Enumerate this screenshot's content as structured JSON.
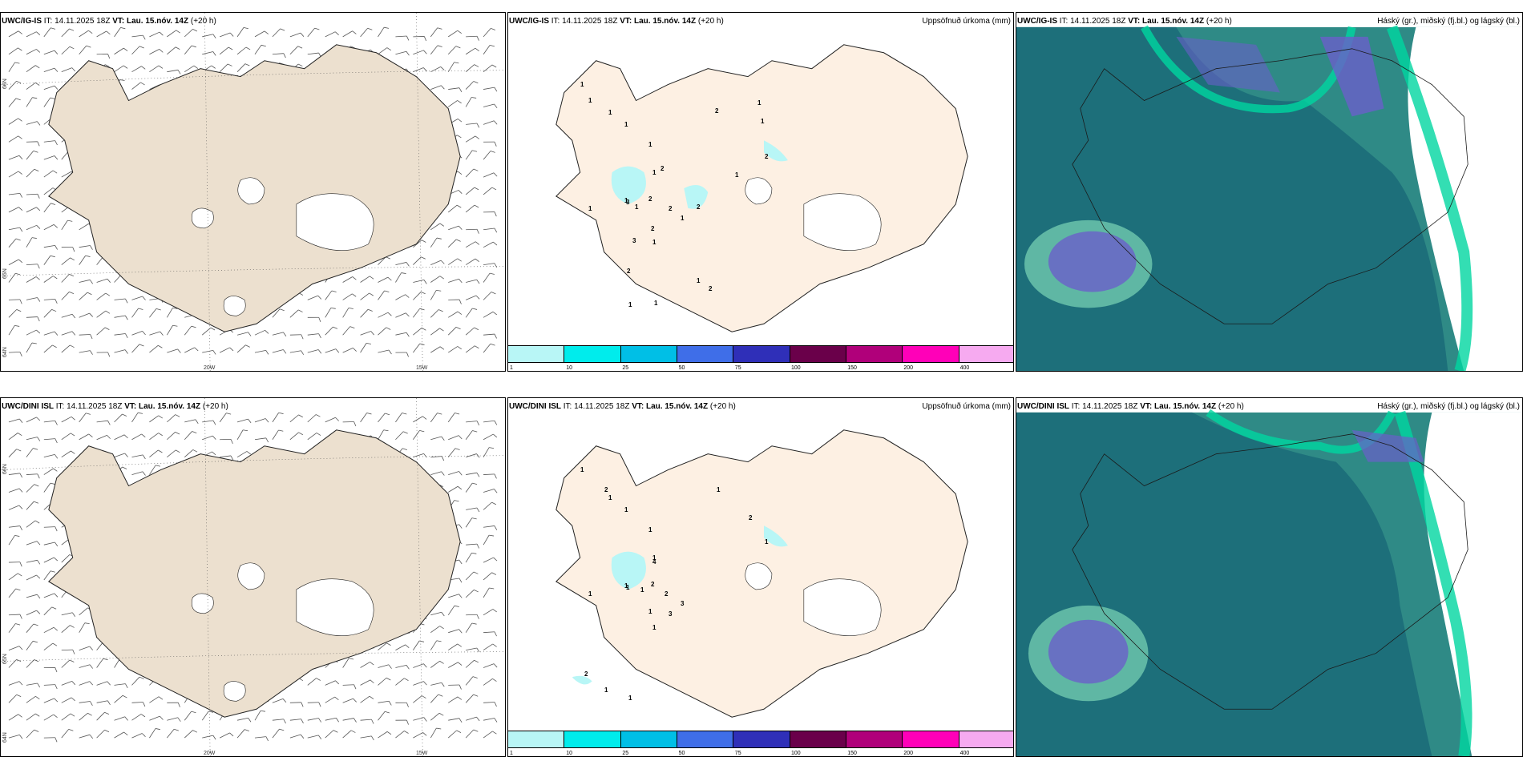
{
  "rows": [
    {
      "wind": {
        "model": "UWC/IG-IS",
        "it_label": "IT:",
        "it_value": "14.11.2025 18Z",
        "vt_label": "VT:",
        "vt_value": "Lau. 15.nóv. 14Z",
        "offset": "(+20 h)"
      },
      "precip": {
        "model": "UWC/IG-IS",
        "it_label": "IT:",
        "it_value": "14.11.2025 18Z",
        "vt_label": "VT:",
        "vt_value": "Lau. 15.nóv. 14Z",
        "offset": "(+20 h)",
        "right_title": "Uppsöfnuð úrkoma (mm)"
      },
      "cloud": {
        "model": "UWC/IG-IS",
        "it_label": "IT:",
        "it_value": "14.11.2025 18Z",
        "vt_label": "VT:",
        "vt_value": "Lau. 15.nóv. 14Z",
        "offset": "(+20 h)",
        "right_title": "Háský (gr.), miðský (fj.bl.) og lágský (bl.)"
      },
      "precip_values": [
        "1",
        "1",
        "1",
        "1",
        "1",
        "1",
        "2",
        "1",
        "1",
        "3",
        "1",
        "2",
        "2",
        "2",
        "1",
        "2",
        "3",
        "1",
        "2",
        "2",
        "1",
        "1",
        "2",
        "1",
        "1",
        "2",
        "1",
        "1"
      ]
    },
    {
      "wind": {
        "model": "UWC/DINI ISL",
        "it_label": "IT:",
        "it_value": "14.11.2025 18Z",
        "vt_label": "VT:",
        "vt_value": "Lau. 15.nóv. 14Z",
        "offset": "(+20 h)"
      },
      "precip": {
        "model": "UWC/DINI ISL",
        "it_label": "IT:",
        "it_value": "14.11.2025 18Z",
        "vt_label": "VT:",
        "vt_value": "Lau. 15.nóv. 14Z",
        "offset": "(+20 h)",
        "right_title": "Uppsöfnuð úrkoma (mm)"
      },
      "cloud": {
        "model": "UWC/DINI ISL",
        "it_label": "IT:",
        "it_value": "14.11.2025 18Z",
        "vt_label": "VT:",
        "vt_value": "Lau. 15.nóv. 14Z",
        "offset": "(+20 h)",
        "right_title": "Háský (gr.), miðský (fj.bl.) og lágský (bl.)"
      },
      "precip_values": [
        "1",
        "2",
        "1",
        "1",
        "1",
        "1",
        "4",
        "1",
        "1",
        "1",
        "1",
        "2",
        "2",
        "3",
        "3",
        "1",
        "2",
        "1",
        "1",
        "1",
        "2",
        "1",
        "1"
      ]
    }
  ],
  "grid_labels": {
    "lon_20": "20W",
    "lon_15": "15W",
    "lat_66": "66N",
    "lat_65": "65N",
    "lat_64": "64N"
  },
  "colorbar": {
    "ticks": [
      "1",
      "10",
      "25",
      "50",
      "75",
      "100",
      "150",
      "200",
      "400"
    ],
    "colors": [
      "#b8f6f6",
      "#00ecec",
      "#00bfe6",
      "#3f6ee8",
      "#2f2fb8",
      "#6a004a",
      "#b0007a",
      "#ff00b8",
      "#f6aaf0"
    ]
  },
  "colors": {
    "land_wind": "#ece0cf",
    "land_precip": "#fdf0e3",
    "cloud_sea": "#2f8a86",
    "cloud_mid": "#5fb7a4",
    "cloud_low": "#1d6f7a",
    "cloud_high": "#6a5fc9"
  }
}
